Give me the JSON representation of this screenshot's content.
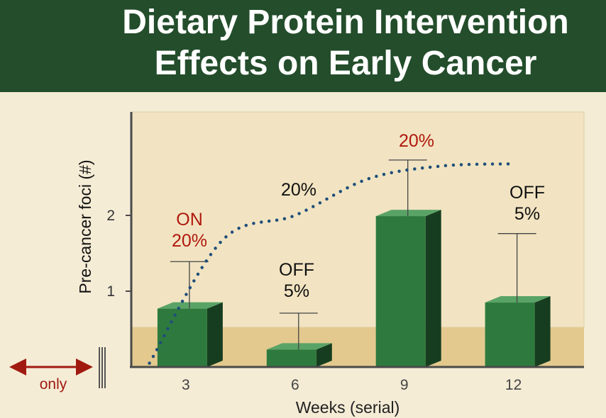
{
  "title": {
    "line1": "Dietary Protein Intervention",
    "line2": "Effects on Early Cancer"
  },
  "colors": {
    "header_bg": "#234d2b",
    "bar_front": "#2e7a3e",
    "bar_top": "#5aa367",
    "bar_side": "#173d20",
    "trend": "#1f4e7a",
    "highlight_text": "#b0180e",
    "plot_bg_upper": "#f2e4c2",
    "plot_bg_lower": "#e3c98e"
  },
  "side_note": {
    "label": "only"
  },
  "chart_data": {
    "type": "bar",
    "xlabel": "Weeks (serial)",
    "ylabel": "Pre-cancer foci (#)",
    "categories": [
      "3",
      "6",
      "9",
      "12"
    ],
    "values": [
      0.77,
      0.23,
      1.99,
      0.85
    ],
    "error_upper": [
      1.39,
      0.71,
      2.73,
      1.76
    ],
    "ylim": [
      0,
      3.3
    ],
    "yticks": [
      1,
      2
    ],
    "annotations": [
      {
        "lines": [
          "ON",
          "20%"
        ],
        "color": "#b0180e",
        "category": "3"
      },
      {
        "lines": [
          "OFF",
          "5%"
        ],
        "color": "#111111",
        "category": "6"
      },
      {
        "lines": [
          "20%"
        ],
        "color": "#111111",
        "category": "6-9"
      },
      {
        "lines": [
          "20%"
        ],
        "color": "#b0180e",
        "category": "9"
      },
      {
        "lines": [
          "OFF",
          "5%"
        ],
        "color": "#111111",
        "category": "12"
      }
    ],
    "trend_line": {
      "style": "dotted",
      "x": [
        2.0,
        4.0,
        6.0,
        8.0,
        10.0,
        12.0
      ],
      "y": [
        0.05,
        1.67,
        2.0,
        2.48,
        2.65,
        2.68
      ]
    }
  }
}
